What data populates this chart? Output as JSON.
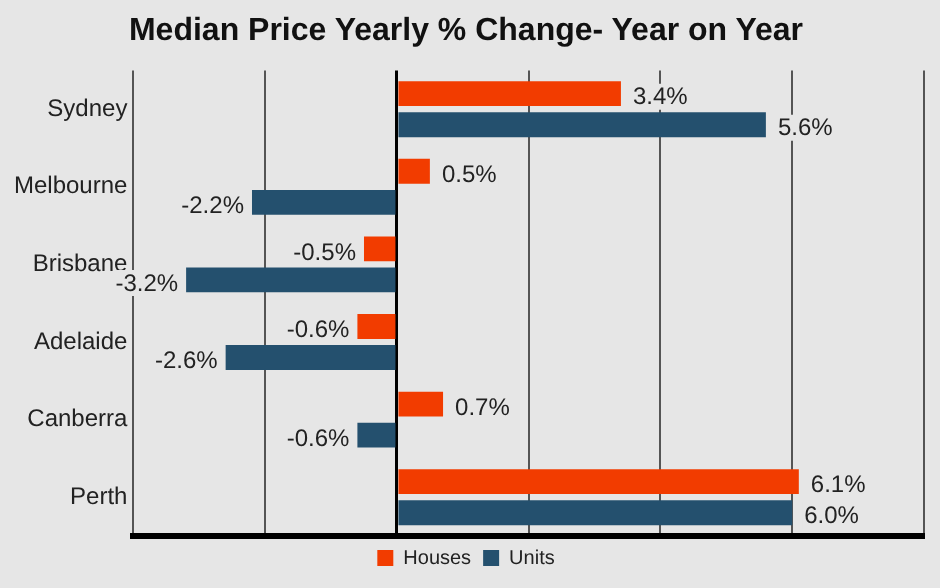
{
  "chart_data": {
    "type": "bar",
    "orientation": "horizontal",
    "title": "Median Price Yearly % Change- Year on Year",
    "categories": [
      "Sydney",
      "Melbourne",
      "Brisbane",
      "Adelaide",
      "Canberra",
      "Perth"
    ],
    "series": [
      {
        "name": "Houses",
        "color": "#f23c00",
        "values": [
          3.4,
          0.5,
          -0.5,
          -0.6,
          0.7,
          6.1
        ],
        "value_labels": [
          "3.4%",
          "0.5%",
          "-0.5%",
          "-0.6%",
          "0.7%",
          "6.1%"
        ]
      },
      {
        "name": "Units",
        "color": "#24506e",
        "values": [
          5.6,
          -2.2,
          -3.2,
          -2.6,
          -0.6,
          6.0
        ],
        "value_labels": [
          "5.6%",
          "-2.2%",
          "-3.2%",
          "-2.6%",
          "-0.6%",
          "6.0%"
        ]
      }
    ],
    "tick_labels": "y",
    "grid": "x",
    "legend": "bottom"
  }
}
